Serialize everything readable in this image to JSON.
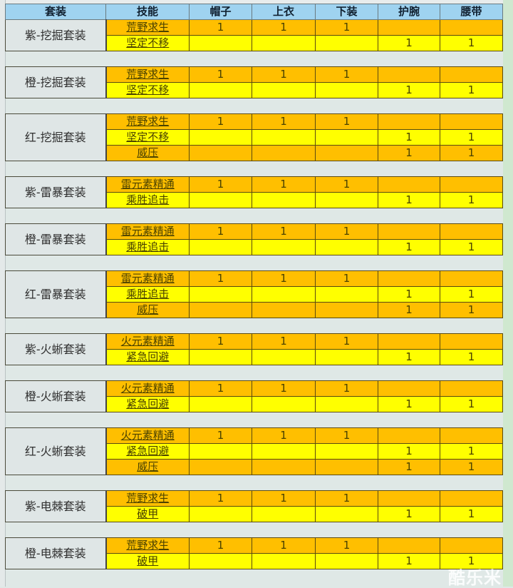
{
  "headers": [
    "套装",
    "技能",
    "帽子",
    "上衣",
    "下装",
    "护腕",
    "腰带"
  ],
  "sets": [
    {
      "name": "紫-挖掘套装",
      "rows": [
        {
          "skill": "荒野求生",
          "cells": [
            "1",
            "1",
            "1",
            "",
            ""
          ]
        },
        {
          "skill": "坚定不移",
          "cells": [
            "",
            "",
            "",
            "1",
            "1"
          ]
        }
      ]
    },
    {
      "name": "橙-挖掘套装",
      "rows": [
        {
          "skill": "荒野求生",
          "cells": [
            "1",
            "1",
            "1",
            "",
            ""
          ]
        },
        {
          "skill": "坚定不移",
          "cells": [
            "",
            "",
            "",
            "1",
            "1"
          ]
        }
      ]
    },
    {
      "name": "红-挖掘套装",
      "rows": [
        {
          "skill": "荒野求生",
          "cells": [
            "1",
            "1",
            "1",
            "",
            ""
          ]
        },
        {
          "skill": "坚定不移",
          "cells": [
            "",
            "",
            "",
            "1",
            "1"
          ]
        },
        {
          "skill": "威压",
          "cells": [
            "",
            "",
            "",
            "1",
            "1"
          ]
        }
      ]
    },
    {
      "name": "紫-雷暴套装",
      "rows": [
        {
          "skill": "雷元素精通",
          "cells": [
            "1",
            "1",
            "1",
            "",
            ""
          ]
        },
        {
          "skill": "乘胜追击",
          "cells": [
            "",
            "",
            "",
            "1",
            "1"
          ]
        }
      ]
    },
    {
      "name": "橙-雷暴套装",
      "rows": [
        {
          "skill": "雷元素精通",
          "cells": [
            "1",
            "1",
            "1",
            "",
            ""
          ]
        },
        {
          "skill": "乘胜追击",
          "cells": [
            "",
            "",
            "",
            "1",
            "1"
          ]
        }
      ]
    },
    {
      "name": "红-雷暴套装",
      "rows": [
        {
          "skill": "雷元素精通",
          "cells": [
            "1",
            "1",
            "1",
            "",
            ""
          ]
        },
        {
          "skill": "乘胜追击",
          "cells": [
            "",
            "",
            "",
            "1",
            "1"
          ]
        },
        {
          "skill": "威压",
          "cells": [
            "",
            "",
            "",
            "1",
            "1"
          ]
        }
      ]
    },
    {
      "name": "紫-火蜥套装",
      "rows": [
        {
          "skill": "火元素精通",
          "cells": [
            "1",
            "1",
            "1",
            "",
            ""
          ]
        },
        {
          "skill": "紧急回避",
          "cells": [
            "",
            "",
            "",
            "1",
            "1"
          ]
        }
      ]
    },
    {
      "name": "橙-火蜥套装",
      "rows": [
        {
          "skill": "火元素精通",
          "cells": [
            "1",
            "1",
            "1",
            "",
            ""
          ]
        },
        {
          "skill": "紧急回避",
          "cells": [
            "",
            "",
            "",
            "1",
            "1"
          ]
        }
      ]
    },
    {
      "name": "红-火蜥套装",
      "rows": [
        {
          "skill": "火元素精通",
          "cells": [
            "1",
            "1",
            "1",
            "",
            ""
          ]
        },
        {
          "skill": "紧急回避",
          "cells": [
            "",
            "",
            "",
            "1",
            "1"
          ]
        },
        {
          "skill": "威压",
          "cells": [
            "",
            "",
            "",
            "1",
            "1"
          ]
        }
      ]
    },
    {
      "name": "紫-电棘套装",
      "rows": [
        {
          "skill": "荒野求生",
          "cells": [
            "1",
            "1",
            "1",
            "",
            ""
          ]
        },
        {
          "skill": "破甲",
          "cells": [
            "",
            "",
            "",
            "1",
            "1"
          ]
        }
      ]
    },
    {
      "name": "橙-电棘套装",
      "rows": [
        {
          "skill": "荒野求生",
          "cells": [
            "1",
            "1",
            "1",
            "",
            ""
          ]
        },
        {
          "skill": "破甲",
          "cells": [
            "",
            "",
            "",
            "1",
            "1"
          ]
        }
      ]
    }
  ],
  "watermark": "酷乐米",
  "colors": {
    "header": "#9fd3f0",
    "orange_row": "#ffbf00",
    "yellow_row": "#ffff00",
    "set_cell": "#dfe6e6"
  }
}
